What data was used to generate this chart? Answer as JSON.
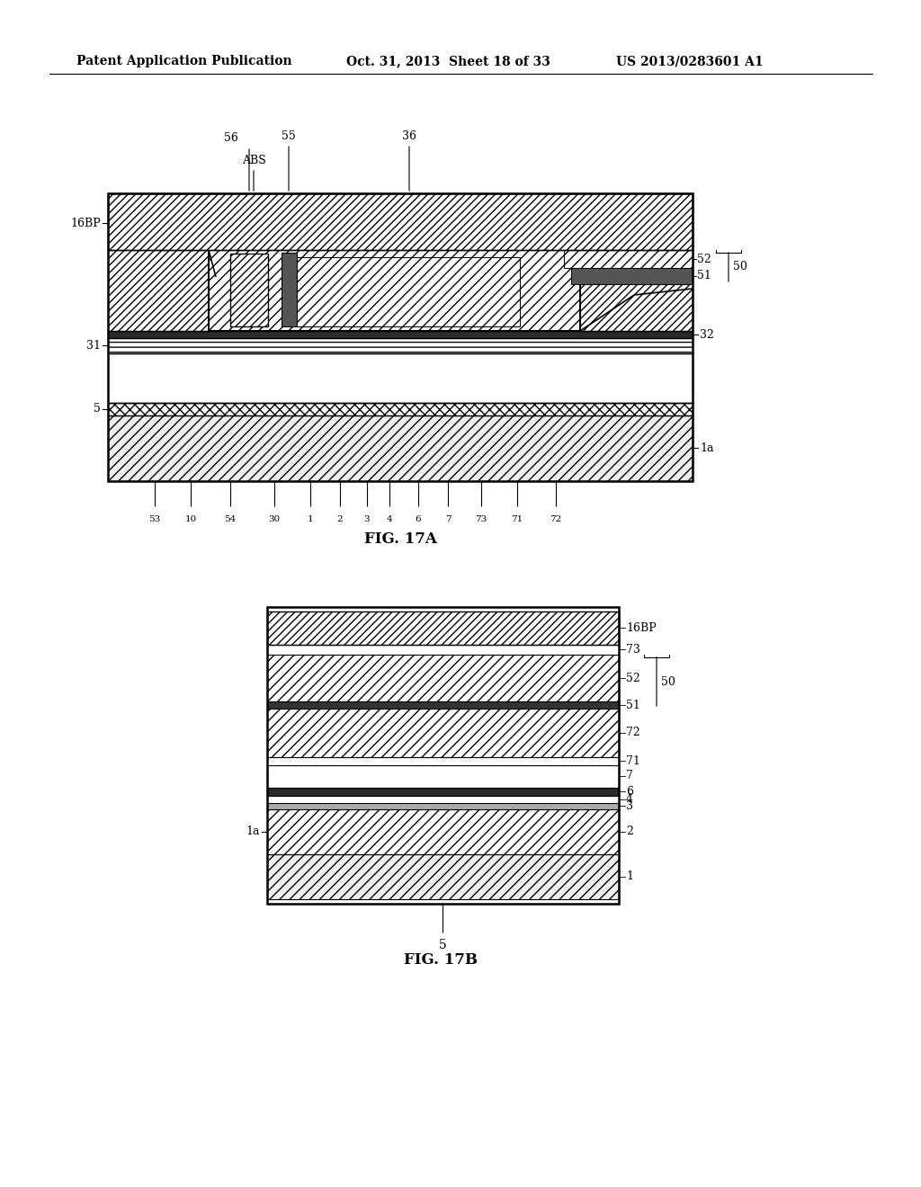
{
  "header_left": "Patent Application Publication",
  "header_mid": "Oct. 31, 2013  Sheet 18 of 33",
  "header_right": "US 2013/0283601 A1",
  "fig17a_caption": "FIG. 17A",
  "fig17b_caption": "FIG. 17B",
  "bg_color": "#ffffff",
  "line_color": "#000000",
  "font_size_header": 10,
  "font_size_label": 9,
  "font_size_caption": 12
}
